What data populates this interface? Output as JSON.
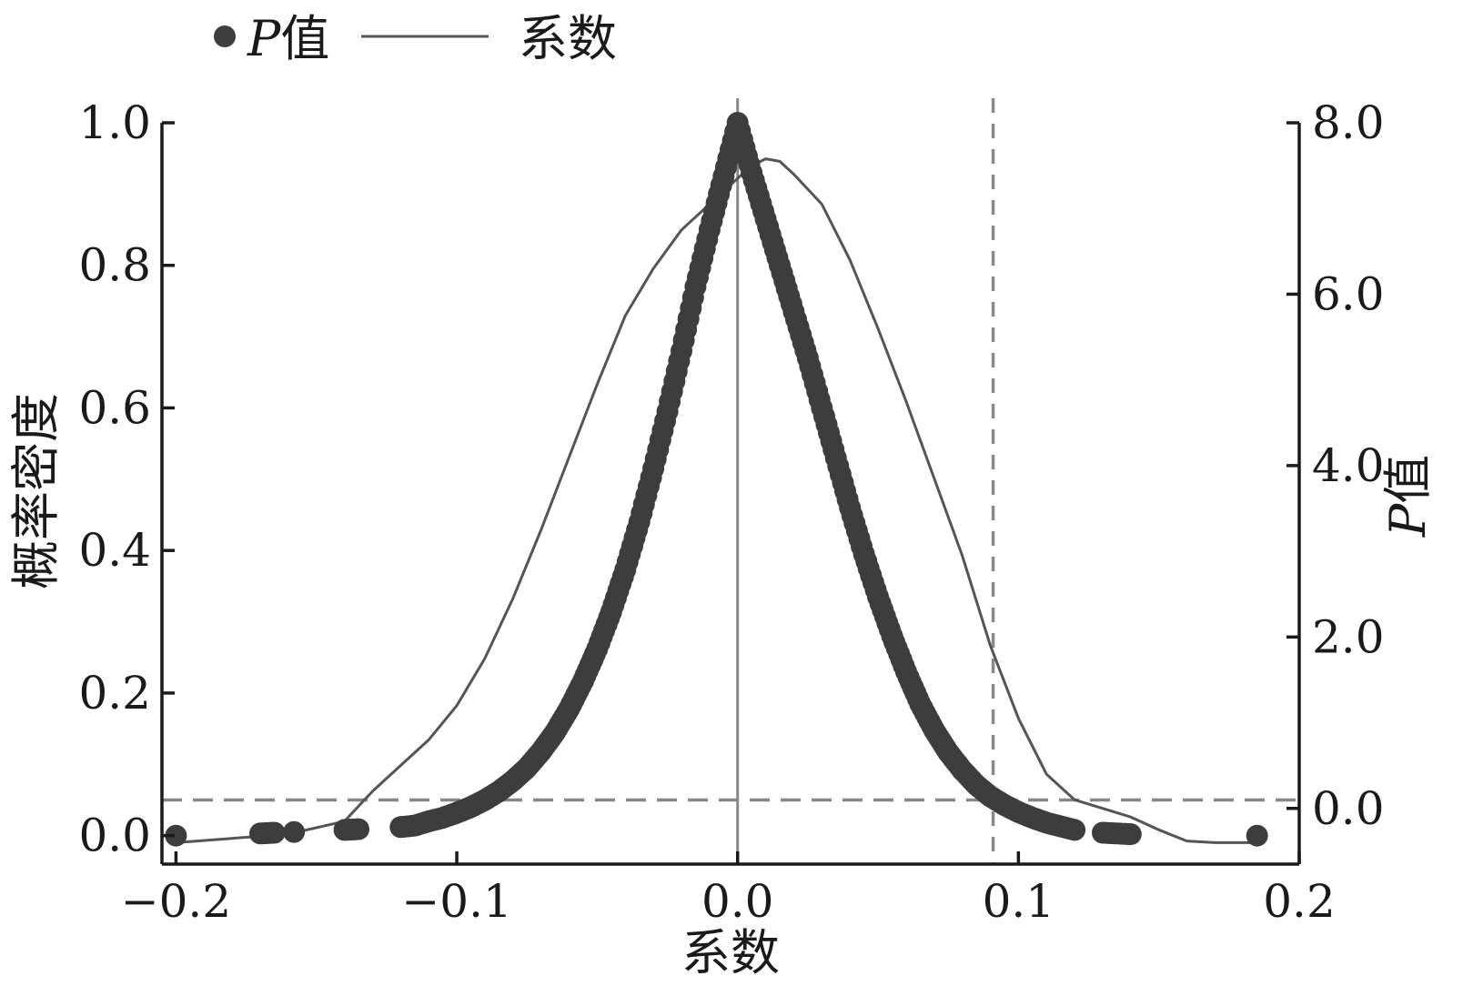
{
  "chart_data": {
    "type": "scatter",
    "xlabel": "系数",
    "ylabel_left": "概率密度",
    "ylabel_right_prefix": "P",
    "ylabel_right_suffix": "值",
    "xlim": [
      -0.205,
      0.2
    ],
    "ylim_left": [
      -0.04,
      1.0
    ],
    "ylim_right": [
      -0.65,
      8.0
    ],
    "x_ticks": [
      {
        "value": -0.2,
        "label": "−0.2"
      },
      {
        "value": -0.1,
        "label": "−0.1"
      },
      {
        "value": 0.0,
        "label": "0.0"
      },
      {
        "value": 0.1,
        "label": "0.1"
      },
      {
        "value": 0.2,
        "label": "0.2"
      }
    ],
    "y_left_ticks": [
      {
        "value": 0.0,
        "label": "0.0"
      },
      {
        "value": 0.2,
        "label": "0.2"
      },
      {
        "value": 0.4,
        "label": "0.4"
      },
      {
        "value": 0.6,
        "label": "0.6"
      },
      {
        "value": 0.8,
        "label": "0.8"
      },
      {
        "value": 1.0,
        "label": "1.0"
      }
    ],
    "y_right_ticks": [
      {
        "value": 0.0,
        "label": "0.0"
      },
      {
        "value": 2.0,
        "label": "2.0"
      },
      {
        "value": 4.0,
        "label": "4.0"
      },
      {
        "value": 6.0,
        "label": "6.0"
      },
      {
        "value": 8.0,
        "label": "8.0"
      }
    ],
    "legend": {
      "placement": "top-left",
      "items": [
        {
          "marker": "dot",
          "label_prefix": "P",
          "label_suffix": "值"
        },
        {
          "marker": "line",
          "label": "系数"
        }
      ]
    },
    "reference_lines": {
      "vertical_solid_x": 0.0,
      "vertical_dashed_x": 0.091,
      "horizontal_dashed_y_left": 0.05
    },
    "series": [
      {
        "name": "P值",
        "kind": "points",
        "axis": "left",
        "color": "#3d3d3d",
        "points": [
          [
            -0.2,
            0.0
          ],
          [
            -0.17,
            0.003
          ],
          [
            -0.165,
            0.004
          ],
          [
            -0.158,
            0.005
          ],
          [
            -0.14,
            0.008
          ],
          [
            -0.135,
            0.009
          ],
          [
            -0.12,
            0.012
          ],
          [
            -0.115,
            0.014
          ],
          [
            -0.11,
            0.02
          ],
          [
            -0.105,
            0.025
          ],
          [
            -0.1,
            0.032
          ],
          [
            -0.095,
            0.04
          ],
          [
            -0.09,
            0.05
          ],
          [
            -0.085,
            0.062
          ],
          [
            -0.08,
            0.077
          ],
          [
            -0.075,
            0.095
          ],
          [
            -0.07,
            0.118
          ],
          [
            -0.065,
            0.145
          ],
          [
            -0.06,
            0.178
          ],
          [
            -0.055,
            0.217
          ],
          [
            -0.05,
            0.262
          ],
          [
            -0.045,
            0.314
          ],
          [
            -0.04,
            0.373
          ],
          [
            -0.035,
            0.44
          ],
          [
            -0.03,
            0.515
          ],
          [
            -0.025,
            0.595
          ],
          [
            -0.02,
            0.68
          ],
          [
            -0.015,
            0.77
          ],
          [
            -0.01,
            0.85
          ],
          [
            -0.005,
            0.925
          ],
          [
            0.0,
            1.0
          ],
          [
            0.005,
            0.93
          ],
          [
            0.01,
            0.865
          ],
          [
            0.015,
            0.8
          ],
          [
            0.02,
            0.735
          ],
          [
            0.025,
            0.67
          ],
          [
            0.03,
            0.6
          ],
          [
            0.035,
            0.53
          ],
          [
            0.04,
            0.46
          ],
          [
            0.045,
            0.395
          ],
          [
            0.05,
            0.335
          ],
          [
            0.055,
            0.28
          ],
          [
            0.06,
            0.23
          ],
          [
            0.065,
            0.185
          ],
          [
            0.07,
            0.148
          ],
          [
            0.075,
            0.117
          ],
          [
            0.08,
            0.092
          ],
          [
            0.085,
            0.071
          ],
          [
            0.09,
            0.055
          ],
          [
            0.095,
            0.043
          ],
          [
            0.1,
            0.033
          ],
          [
            0.105,
            0.025
          ],
          [
            0.11,
            0.018
          ],
          [
            0.115,
            0.013
          ],
          [
            0.12,
            0.008
          ],
          [
            0.13,
            0.004
          ],
          [
            0.135,
            0.003
          ],
          [
            0.14,
            0.002
          ],
          [
            0.185,
            0.0
          ]
        ]
      },
      {
        "name": "系数",
        "kind": "line",
        "axis": "right",
        "color": "#555555",
        "points": [
          [
            -0.2,
            -0.4
          ],
          [
            -0.16,
            -0.3
          ],
          [
            -0.14,
            -0.15
          ],
          [
            -0.13,
            0.2
          ],
          [
            -0.12,
            0.5
          ],
          [
            -0.11,
            0.8
          ],
          [
            -0.1,
            1.2
          ],
          [
            -0.09,
            1.75
          ],
          [
            -0.08,
            2.45
          ],
          [
            -0.07,
            3.25
          ],
          [
            -0.06,
            4.1
          ],
          [
            -0.05,
            4.95
          ],
          [
            -0.04,
            5.75
          ],
          [
            -0.03,
            6.3
          ],
          [
            -0.02,
            6.75
          ],
          [
            -0.01,
            7.05
          ],
          [
            0.0,
            7.35
          ],
          [
            0.005,
            7.5
          ],
          [
            0.01,
            7.58
          ],
          [
            0.015,
            7.55
          ],
          [
            0.02,
            7.4
          ],
          [
            0.03,
            7.05
          ],
          [
            0.04,
            6.4
          ],
          [
            0.05,
            5.6
          ],
          [
            0.06,
            4.75
          ],
          [
            0.07,
            3.85
          ],
          [
            0.08,
            2.95
          ],
          [
            0.09,
            1.9
          ],
          [
            0.1,
            1.05
          ],
          [
            0.11,
            0.4
          ],
          [
            0.12,
            0.1
          ],
          [
            0.14,
            -0.1
          ],
          [
            0.15,
            -0.25
          ],
          [
            0.16,
            -0.38
          ],
          [
            0.17,
            -0.4
          ],
          [
            0.185,
            -0.4
          ]
        ]
      }
    ]
  }
}
